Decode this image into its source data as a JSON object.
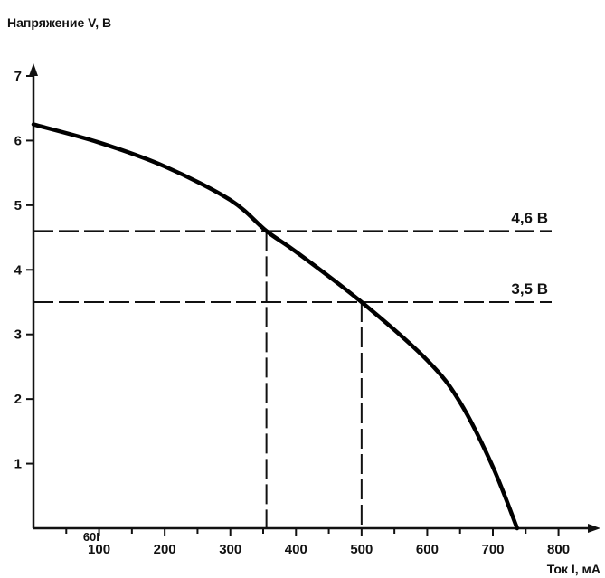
{
  "chart_data": {
    "type": "line",
    "xlabel": "Ток I, мА",
    "ylabel": "Напряжение V, В",
    "xlim": [
      0,
      800
    ],
    "ylim": [
      0,
      7.5
    ],
    "grid": false,
    "x_ticks": [
      100,
      200,
      300,
      400,
      500,
      600,
      700,
      800
    ],
    "y_ticks": [
      1,
      2,
      3,
      4,
      5,
      6,
      7
    ],
    "x_tick_labels": [
      "100",
      "200",
      "300",
      "400",
      "500",
      "600",
      "700",
      "800"
    ],
    "y_tick_labels": [
      "1",
      "2",
      "3",
      "4",
      "5",
      "6",
      "7"
    ],
    "extra_axis_label": "60I",
    "series": [
      {
        "points": [
          [
            0,
            6.25
          ],
          [
            100,
            5.97
          ],
          [
            200,
            5.6
          ],
          [
            300,
            5.08
          ],
          [
            355,
            4.6
          ],
          [
            400,
            4.28
          ],
          [
            500,
            3.5
          ],
          [
            600,
            2.6
          ],
          [
            650,
            1.95
          ],
          [
            700,
            0.95
          ],
          [
            737,
            0.0
          ]
        ]
      }
    ],
    "reference_lines": [
      {
        "y": 4.6,
        "label": "4,6 В",
        "x_drop": 355
      },
      {
        "y": 3.5,
        "label": "3,5 В",
        "x_drop": 500
      }
    ]
  }
}
